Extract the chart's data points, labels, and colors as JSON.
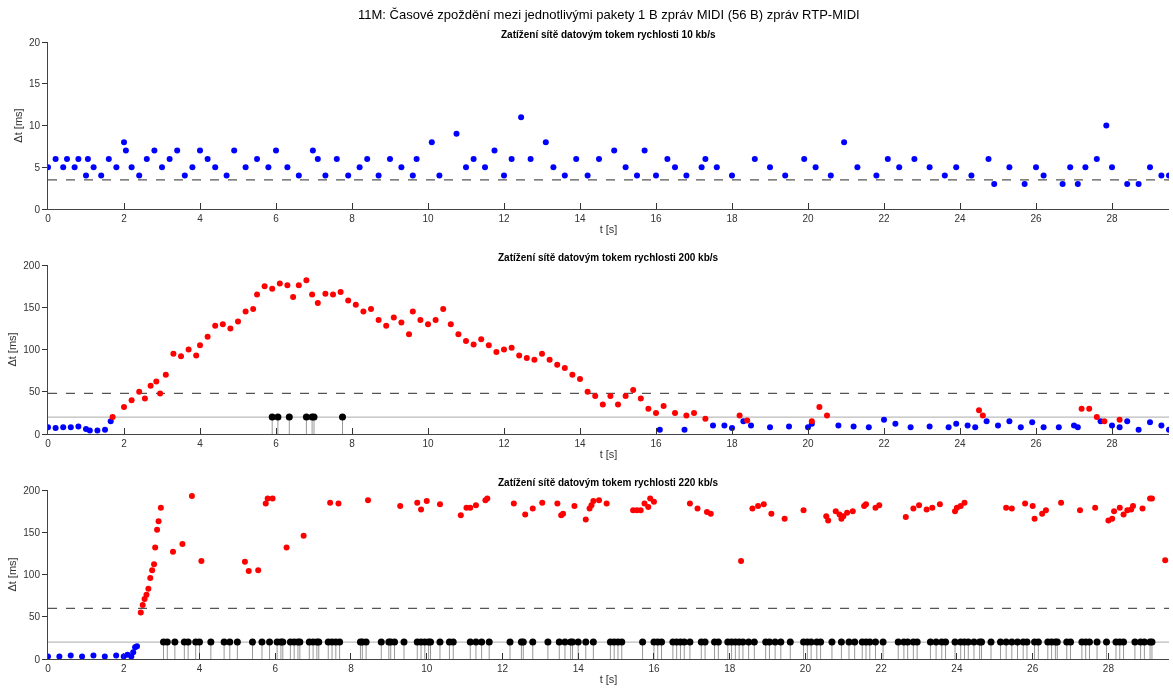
{
  "chart_data": [
    {
      "type": "scatter",
      "title": "Zatížení sítě datovým tokem rychlosti 10 kb/s",
      "annotations": [
        "11M: Časové zpoždění mezi jednotlivými pakety 1 B zpráv MIDI (56 B) zpráv RTP-MIDI"
      ],
      "xlabel": "t [s]",
      "ylabel": "Δt [ms]",
      "xlim": [
        0,
        29.5
      ],
      "xticks": [
        0,
        2,
        4,
        6,
        8,
        10,
        12,
        14,
        16,
        18,
        20,
        22,
        24,
        26,
        28
      ],
      "ylim": [
        0,
        20
      ],
      "yticks": [
        0,
        5,
        10,
        15,
        20
      ],
      "marker": "circle",
      "ref_lines": [
        {
          "axis": "y",
          "value": 3.5,
          "color": "#555555",
          "line_style": "dashed"
        }
      ],
      "series": [
        {
          "color": "#0000ff",
          "x": [
            0,
            0.2,
            0.4,
            0.5,
            0.7,
            0.8,
            1.0,
            1.05,
            1.2,
            1.4,
            1.6,
            1.8,
            2.0,
            2.05,
            2.2,
            2.4,
            2.6,
            2.8,
            3.0,
            3.2,
            3.4,
            3.6,
            3.8,
            4.0,
            4.2,
            4.4,
            4.7,
            4.9,
            5.2,
            5.5,
            5.8,
            6.0,
            6.3,
            6.6,
            6.97,
            7.1,
            7.3,
            7.6,
            7.9,
            8.2,
            8.4,
            8.7,
            9.0,
            9.3,
            9.6,
            9.7,
            10.1,
            10.3,
            10.75,
            11.0,
            11.2,
            11.5,
            11.75,
            12.0,
            12.2,
            12.45,
            12.7,
            13.1,
            13.3,
            13.6,
            13.9,
            14.2,
            14.5,
            14.9,
            15.2,
            15.5,
            15.7,
            16.0,
            16.3,
            16.5,
            16.8,
            17.2,
            17.3,
            17.6,
            18.0,
            18.6,
            19.0,
            19.4,
            19.9,
            20.2,
            20.6,
            20.95,
            21.3,
            21.8,
            22.1,
            22.4,
            22.8,
            23.2,
            23.6,
            23.9,
            24.3,
            24.75,
            24.9,
            25.3,
            25.7,
            26.0,
            26.2,
            26.7,
            26.9,
            27.1,
            27.3,
            27.6,
            27.85,
            28.0,
            28.4,
            28.7,
            29.0,
            29.3,
            29.5
          ],
          "values": [
            5,
            6,
            5,
            6,
            5,
            6,
            4,
            6,
            5,
            4,
            6,
            5,
            8,
            7,
            5,
            4,
            6,
            7,
            5,
            6,
            7,
            4,
            5,
            7,
            6,
            5,
            4,
            7,
            5,
            6,
            5,
            7,
            5,
            4,
            7,
            6,
            4,
            6,
            4,
            5,
            6,
            4,
            6,
            5,
            4,
            6,
            8,
            4,
            9,
            5,
            6,
            5,
            7,
            4,
            6,
            11,
            6,
            8,
            5,
            4,
            6,
            4,
            6,
            7,
            5,
            4,
            7,
            4,
            6,
            5,
            4,
            5,
            6,
            5,
            4,
            6,
            5,
            4,
            6,
            5,
            4,
            8,
            5,
            4,
            6,
            5,
            6,
            5,
            4,
            5,
            4,
            6,
            3,
            5,
            3,
            5,
            4,
            3,
            5,
            3,
            5,
            6,
            10,
            5,
            3,
            3,
            5,
            4,
            4
          ]
        }
      ]
    },
    {
      "type": "scatter",
      "title": "Zatížení sítě datovým tokem rychlosti 200 kb/s",
      "xlabel": "t [s]",
      "ylabel": "Δt [ms]",
      "xlim": [
        0,
        29.5
      ],
      "xticks": [
        0,
        2,
        4,
        6,
        8,
        10,
        12,
        14,
        16,
        18,
        20,
        22,
        24,
        26,
        28
      ],
      "ylim": [
        0,
        200
      ],
      "yticks": [
        0,
        50,
        100,
        150,
        200
      ],
      "marker": "circle",
      "ref_lines": [
        {
          "axis": "y",
          "value": 48,
          "color": "#555555",
          "line_style": "dashed"
        },
        {
          "axis": "y",
          "value": 20,
          "color": "#bbbbbb",
          "line_style": "solid"
        }
      ],
      "series": [
        {
          "color": "#0000ff",
          "x": [
            0,
            0.2,
            0.4,
            0.6,
            0.8,
            1.0,
            1.1,
            1.3,
            1.5,
            1.65,
            16.1,
            16.75,
            17.5,
            17.8,
            18.0,
            18.3,
            18.5,
            19.0,
            19.5,
            20.0,
            20.1,
            20.8,
            21.2,
            21.6,
            22.0,
            22.3,
            22.7,
            23.2,
            23.7,
            23.9,
            24.2,
            24.4,
            24.7,
            25.0,
            25.3,
            25.6,
            25.9,
            26.2,
            26.6,
            27.0,
            27.1,
            27.7,
            28.0,
            28.2,
            28.4,
            28.7,
            29.0,
            29.3,
            29.5
          ],
          "values": [
            8,
            7,
            8,
            8,
            9,
            6,
            4,
            4,
            5,
            15,
            5,
            5,
            10,
            10,
            7,
            15,
            10,
            8,
            9,
            8,
            12,
            10,
            9,
            8,
            17,
            12,
            8,
            9,
            8,
            12,
            10,
            8,
            15,
            10,
            15,
            8,
            14,
            8,
            8,
            10,
            8,
            15,
            10,
            8,
            15,
            5,
            14,
            10,
            5
          ]
        },
        {
          "color": "#ff0000",
          "x": [
            1.7,
            2.0,
            2.2,
            2.4,
            2.55,
            2.7,
            2.85,
            2.95,
            3.1,
            3.3,
            3.5,
            3.7,
            3.9,
            4.0,
            4.2,
            4.4,
            4.6,
            4.8,
            5.0,
            5.2,
            5.4,
            5.5,
            5.7,
            5.9,
            6.1,
            6.3,
            6.45,
            6.6,
            6.8,
            6.95,
            7.1,
            7.3,
            7.5,
            7.7,
            7.9,
            8.1,
            8.3,
            8.5,
            8.7,
            8.9,
            9.1,
            9.3,
            9.5,
            9.6,
            9.8,
            10.0,
            10.2,
            10.4,
            10.6,
            10.8,
            11.0,
            11.2,
            11.4,
            11.6,
            11.8,
            12.0,
            12.2,
            12.4,
            12.6,
            12.8,
            13.0,
            13.2,
            13.4,
            13.6,
            13.8,
            14.0,
            14.2,
            14.4,
            14.6,
            14.8,
            15.0,
            15.2,
            15.4,
            15.6,
            15.8,
            16.0,
            16.2,
            16.5,
            16.8,
            17.0,
            17.3,
            18.2,
            18.4,
            20.1,
            20.3,
            20.5,
            24.5,
            24.6,
            27.2,
            27.4,
            27.6,
            27.8,
            28.2
          ],
          "values": [
            20,
            32,
            40,
            50,
            42,
            57,
            62,
            48,
            70,
            95,
            92,
            100,
            93,
            105,
            115,
            128,
            130,
            125,
            133,
            145,
            148,
            165,
            175,
            172,
            178,
            176,
            162,
            176,
            182,
            165,
            155,
            166,
            165,
            168,
            158,
            153,
            145,
            148,
            135,
            128,
            138,
            132,
            118,
            145,
            135,
            130,
            135,
            148,
            130,
            118,
            110,
            106,
            112,
            105,
            97,
            100,
            102,
            93,
            90,
            88,
            95,
            88,
            82,
            78,
            70,
            65,
            50,
            45,
            35,
            45,
            35,
            45,
            52,
            42,
            30,
            25,
            33,
            25,
            22,
            25,
            18,
            22,
            16,
            15,
            32,
            22,
            28,
            22,
            30,
            30,
            20,
            15,
            17
          ]
        },
        {
          "type": "lollipop",
          "color": "#000000",
          "x": [
            5.9,
            6.05,
            6.35,
            6.8,
            6.95,
            7.0,
            7.75
          ],
          "values": [
            20,
            20,
            20,
            20,
            20,
            20,
            20
          ]
        }
      ]
    },
    {
      "type": "scatter",
      "title": "Zatížení sítě datovým tokem rychlosti 220 kb/s",
      "xlabel": "t [s]",
      "ylabel": "Δt [ms]",
      "xlim": [
        0,
        29.6
      ],
      "xticks": [
        0,
        2,
        4,
        6,
        8,
        10,
        12,
        14,
        16,
        18,
        20,
        22,
        24,
        26,
        28
      ],
      "ylim": [
        0,
        200
      ],
      "yticks": [
        0,
        50,
        100,
        150,
        200
      ],
      "marker": "circle",
      "ref_lines": [
        {
          "axis": "y",
          "value": 60,
          "color": "#555555",
          "line_style": "dashed"
        },
        {
          "axis": "y",
          "value": 20,
          "color": "#bbbbbb",
          "line_style": "solid"
        }
      ],
      "series": [
        {
          "color": "#0000ff",
          "x": [
            0,
            0.3,
            0.6,
            0.9,
            1.2,
            1.5,
            1.8,
            2.0,
            2.1,
            2.2,
            2.25,
            2.3,
            2.35
          ],
          "values": [
            3,
            3,
            4,
            3,
            4,
            3,
            4,
            3,
            5,
            3,
            8,
            14,
            15
          ]
        },
        {
          "color": "#ff0000",
          "x": [
            2.45,
            2.5,
            2.55,
            2.6,
            2.65,
            2.7,
            2.75,
            2.8,
            2.83,
            2.88,
            2.92,
            2.98,
            3.3,
            3.55,
            3.8,
            4.05,
            5.2,
            5.3,
            5.55,
            5.75,
            5.8,
            5.93,
            6.3,
            6.75,
            7.45,
            7.67,
            8.45,
            9.3,
            9.75,
            9.85,
            10.0,
            10.35,
            10.9,
            11.05,
            11.15,
            11.3,
            11.55,
            11.6,
            12.3,
            12.6,
            12.8,
            13.05,
            13.45,
            13.55,
            13.6,
            13.9,
            14.2,
            14.3,
            14.35,
            14.4,
            14.55,
            14.75,
            15.45,
            15.55,
            15.65,
            15.75,
            15.85,
            15.9,
            16.0,
            16.95,
            17.15,
            17.4,
            17.5,
            18.3,
            18.6,
            18.75,
            18.9,
            19.1,
            19.45,
            19.95,
            20.55,
            20.6,
            20.8,
            20.9,
            20.95,
            21.0,
            21.1,
            21.25,
            21.55,
            21.6,
            21.85,
            21.95,
            22.65,
            22.85,
            23.0,
            23.2,
            23.35,
            23.55,
            23.95,
            24.0,
            24.1,
            24.2,
            25.3,
            25.45,
            25.8,
            26.0,
            26.05,
            26.25,
            26.35,
            26.75,
            27.25,
            27.65,
            28.0,
            28.1,
            28.15,
            28.3,
            28.4,
            28.5,
            28.6,
            28.65,
            28.9,
            29.1,
            29.15,
            29.5
          ],
          "values": [
            55,
            64,
            71,
            76,
            83,
            96,
            105,
            112,
            132,
            153,
            163,
            179,
            127,
            136,
            193,
            116,
            115,
            104,
            105,
            184,
            190,
            190,
            132,
            146,
            185,
            184,
            188,
            181,
            185,
            177,
            187,
            183,
            170,
            179,
            179,
            182,
            188,
            190,
            184,
            171,
            178,
            185,
            184,
            170,
            172,
            181,
            165,
            178,
            182,
            187,
            188,
            184,
            176,
            176,
            176,
            184,
            180,
            190,
            186,
            184,
            178,
            174,
            172,
            116,
            178,
            181,
            183,
            172,
            166,
            176,
            169,
            164,
            175,
            171,
            166,
            169,
            173,
            175,
            181,
            183,
            179,
            182,
            168,
            178,
            182,
            177,
            179,
            183,
            175,
            179,
            181,
            185,
            179,
            178,
            184,
            181,
            166,
            172,
            176,
            185,
            176,
            179,
            164,
            166,
            175,
            179,
            171,
            176,
            177,
            181,
            178,
            190,
            190,
            117
          ]
        },
        {
          "type": "lollipop",
          "color": "#000000",
          "x": [
            3.05,
            3.15,
            3.35,
            3.6,
            3.7,
            3.9,
            4.0,
            4.3,
            4.65,
            4.8,
            5.0,
            5.4,
            5.65,
            5.85,
            6.05,
            6.15,
            6.2,
            6.4,
            6.5,
            6.6,
            6.65,
            6.9,
            7.0,
            7.1,
            7.15,
            7.4,
            7.5,
            7.6,
            7.7,
            8.25,
            8.3,
            8.4,
            8.8,
            9.0,
            9.05,
            9.15,
            9.4,
            9.75,
            9.85,
            9.95,
            10.05,
            10.1,
            10.35,
            10.6,
            10.7,
            11.15,
            11.3,
            11.45,
            11.65,
            12.2,
            12.5,
            12.55,
            12.8,
            13.2,
            13.5,
            13.65,
            13.8,
            13.85,
            14.0,
            14.2,
            14.4,
            14.85,
            14.95,
            15.05,
            15.15,
            15.7,
            16.0,
            16.1,
            16.2,
            16.5,
            16.6,
            16.7,
            16.8,
            16.95,
            17.25,
            17.35,
            17.6,
            17.7,
            17.95,
            18.05,
            18.15,
            18.25,
            18.35,
            18.5,
            18.65,
            18.95,
            19.05,
            19.2,
            19.35,
            19.6,
            19.95,
            20.05,
            20.15,
            20.3,
            20.4,
            20.7,
            20.95,
            21.15,
            21.3,
            21.5,
            21.6,
            21.7,
            21.85,
            22.05,
            22.45,
            22.6,
            22.7,
            22.85,
            22.95,
            23.3,
            23.45,
            23.6,
            23.7,
            23.95,
            24.1,
            24.2,
            24.3,
            24.45,
            24.6,
            24.65,
            24.9,
            25.15,
            25.3,
            25.45,
            25.6,
            25.75,
            25.85,
            26.05,
            26.15,
            26.4,
            26.5,
            26.6,
            26.65,
            26.9,
            27.0,
            27.3,
            27.4,
            27.5,
            27.7,
            27.95,
            28.2,
            28.3,
            28.4,
            28.7,
            28.85,
            28.95,
            29.1,
            29.15
          ],
          "values": [
            20,
            20,
            20,
            20,
            20,
            20,
            20,
            20,
            20,
            20,
            20,
            20,
            20,
            20,
            20,
            20,
            20,
            20,
            20,
            20,
            20,
            20,
            20,
            20,
            20,
            20,
            20,
            20,
            20,
            20,
            20,
            20,
            20,
            20,
            20,
            20,
            20,
            20,
            20,
            20,
            20,
            20,
            20,
            20,
            20,
            20,
            20,
            20,
            20,
            20,
            20,
            20,
            20,
            20,
            20,
            20,
            20,
            20,
            20,
            20,
            20,
            20,
            20,
            20,
            20,
            20,
            20,
            20,
            20,
            20,
            20,
            20,
            20,
            20,
            20,
            20,
            20,
            20,
            20,
            20,
            20,
            20,
            20,
            20,
            20,
            20,
            20,
            20,
            20,
            20,
            20,
            20,
            20,
            20,
            20,
            20,
            20,
            20,
            20,
            20,
            20,
            20,
            20,
            20,
            20,
            20,
            20,
            20,
            20,
            20,
            20,
            20,
            20,
            20,
            20,
            20,
            20,
            20,
            20,
            20,
            20,
            20,
            20,
            20,
            20,
            20,
            20,
            20,
            20,
            20,
            20,
            20,
            20,
            20,
            20,
            20,
            20,
            20,
            20,
            20,
            20,
            20,
            20,
            20,
            20,
            20,
            20,
            20
          ]
        }
      ]
    }
  ]
}
